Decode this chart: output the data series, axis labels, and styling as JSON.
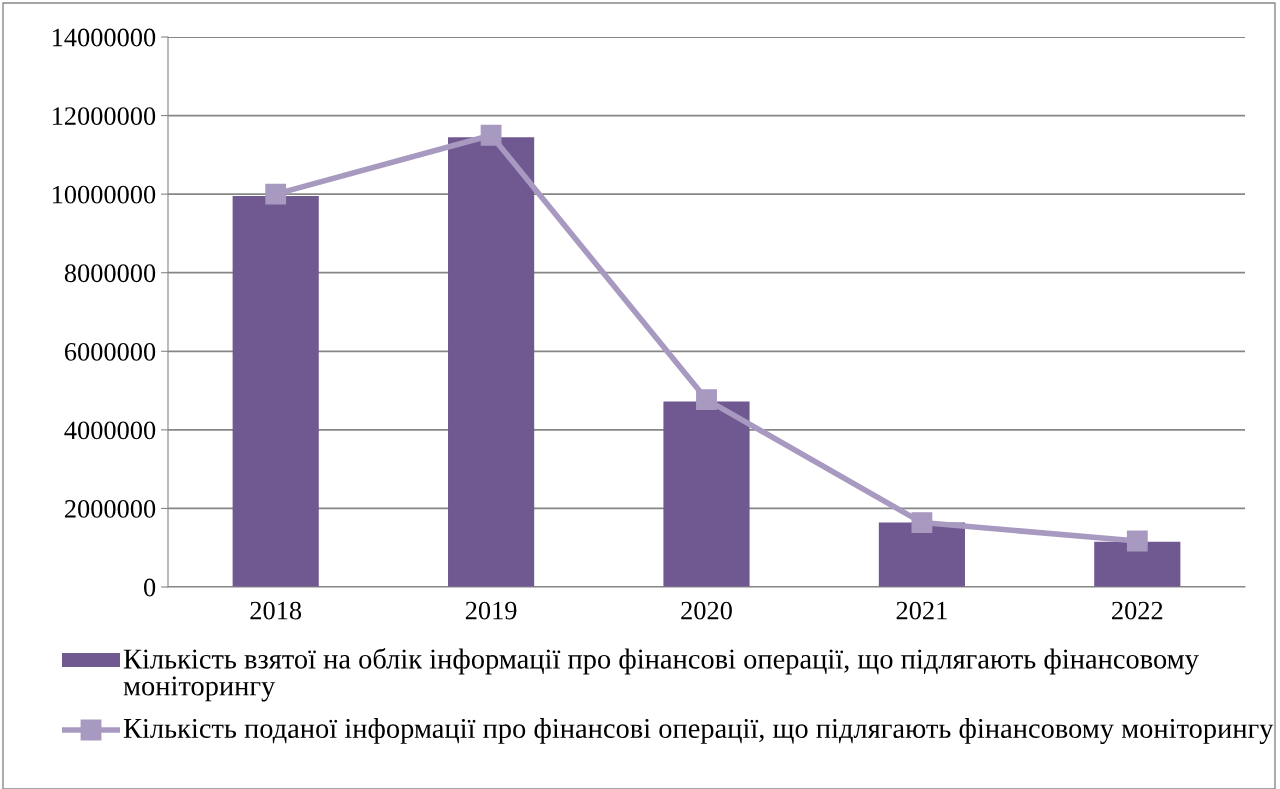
{
  "chart_data": {
    "type": "bar",
    "categories": [
      "2018",
      "2019",
      "2020",
      "2021",
      "2022"
    ],
    "series": [
      {
        "name": "Кількість взятої на облік інформації про фінансові операції, що підлягають фінансовому моніторингу",
        "color": "#705890",
        "values": [
          9950000,
          11450000,
          4720000,
          1640000,
          1150000
        ]
      },
      {
        "name": "Кількість поданої інформації про фінансові операції, що підлягають фінансовому моніторингу",
        "type": "line",
        "color": "#a899c0",
        "marker": "square",
        "values": [
          10000000,
          11500000,
          4770000,
          1640000,
          1170000
        ]
      }
    ],
    "ylim": [
      0,
      14000000
    ],
    "yticks": [
      0,
      2000000,
      4000000,
      6000000,
      8000000,
      10000000,
      12000000,
      14000000
    ],
    "grid": "y",
    "legend": "bottom"
  }
}
